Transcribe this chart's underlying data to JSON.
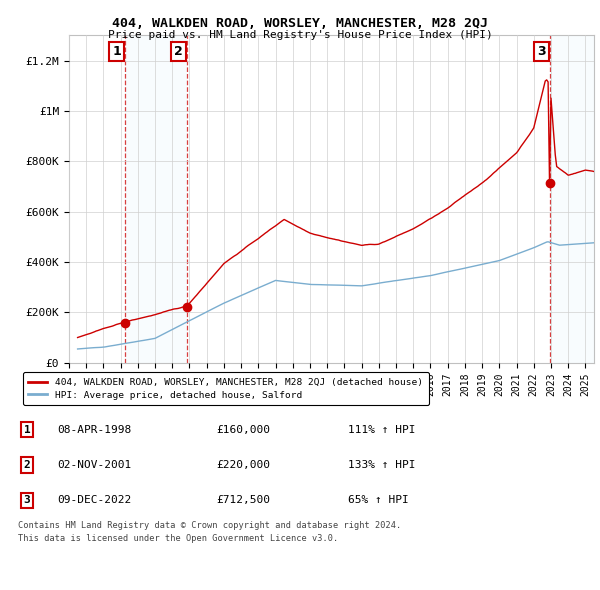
{
  "title1": "404, WALKDEN ROAD, WORSLEY, MANCHESTER, M28 2QJ",
  "title2": "Price paid vs. HM Land Registry's House Price Index (HPI)",
  "ylabel_ticks": [
    "£0",
    "£200K",
    "£400K",
    "£600K",
    "£800K",
    "£1M",
    "£1.2M"
  ],
  "ytick_values": [
    0,
    200000,
    400000,
    600000,
    800000,
    1000000,
    1200000
  ],
  "ylim": [
    0,
    1300000
  ],
  "xlim_start": 1995.5,
  "xlim_end": 2025.5,
  "sale_dates": [
    1998.27,
    2001.84,
    2022.94
  ],
  "sale_prices": [
    160000,
    220000,
    712500
  ],
  "sale_labels": [
    "1",
    "2",
    "3"
  ],
  "red_color": "#cc0000",
  "blue_color": "#7aadcf",
  "legend_label_red": "404, WALKDEN ROAD, WORSLEY, MANCHESTER, M28 2QJ (detached house)",
  "legend_label_blue": "HPI: Average price, detached house, Salford",
  "table_entries": [
    {
      "num": "1",
      "date": "08-APR-1998",
      "price": "£160,000",
      "pct": "111% ↑ HPI"
    },
    {
      "num": "2",
      "date": "02-NOV-2001",
      "price": "£220,000",
      "pct": "133% ↑ HPI"
    },
    {
      "num": "3",
      "date": "09-DEC-2022",
      "price": "£712,500",
      "pct": "65% ↑ HPI"
    }
  ],
  "footnote1": "Contains HM Land Registry data © Crown copyright and database right 2024.",
  "footnote2": "This data is licensed under the Open Government Licence v3.0."
}
